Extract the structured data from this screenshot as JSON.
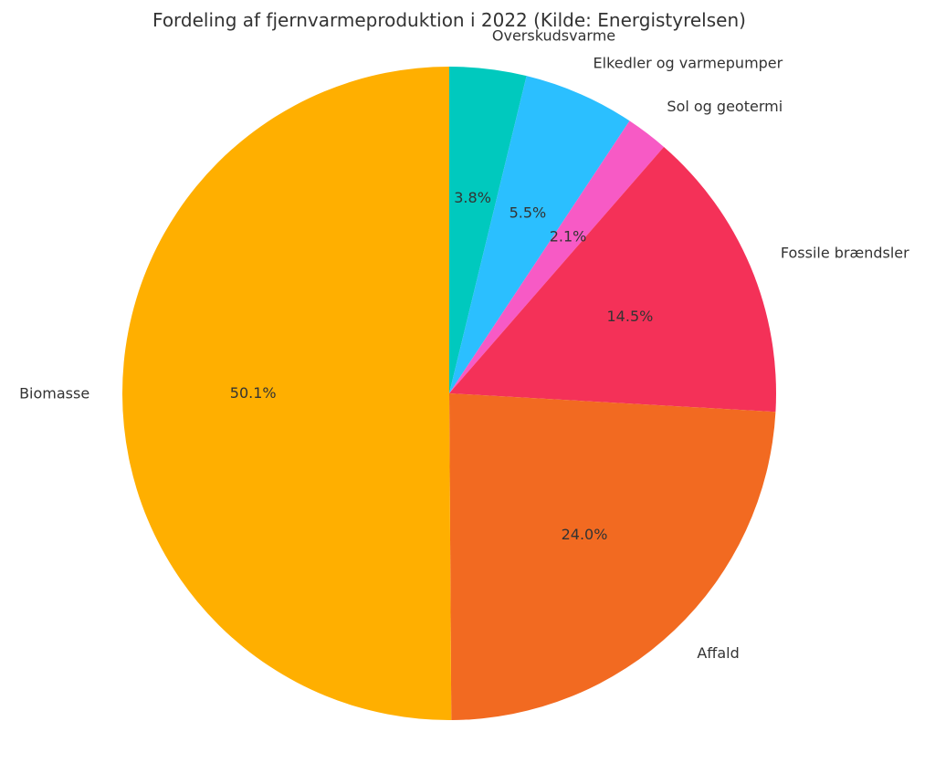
{
  "chart_data": {
    "type": "pie",
    "title": "Fordeling af fjernvarmeproduktion i 2022 (Kilde: Energistyrelsen)",
    "start_angle": "top",
    "direction": "clockwise",
    "slices": [
      {
        "label": "Overskudsvarme",
        "value": 3.8,
        "pct_label": "3.8%",
        "color": "#00C9BE"
      },
      {
        "label": "Elkedler og varmepumper",
        "value": 5.5,
        "pct_label": "5.5%",
        "color": "#2BBFFF"
      },
      {
        "label": "Sol og geotermi",
        "value": 2.1,
        "pct_label": "2.1%",
        "color": "#F75AC5"
      },
      {
        "label": "Fossile brændsler",
        "value": 14.5,
        "pct_label": "14.5%",
        "color": "#F43158"
      },
      {
        "label": "Affald",
        "value": 24.0,
        "pct_label": "24.0%",
        "color": "#F26A21"
      },
      {
        "label": "Biomasse",
        "value": 50.1,
        "pct_label": "50.1%",
        "color": "#FFAF00"
      }
    ]
  }
}
